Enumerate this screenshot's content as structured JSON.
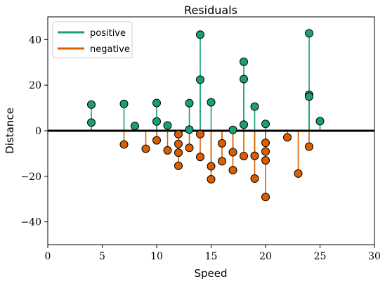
{
  "chart_data": {
    "type": "scatter",
    "title": "Residuals",
    "xlabel": "Speed",
    "ylabel": "Distance",
    "xlim": [
      0,
      30
    ],
    "ylim": [
      -50,
      50
    ],
    "x_ticks": [
      0,
      5,
      10,
      15,
      20,
      25,
      30
    ],
    "y_ticks": [
      -40,
      -20,
      0,
      20,
      40
    ],
    "x_tick_labels": [
      "0",
      "5",
      "10",
      "15",
      "20",
      "25",
      "30"
    ],
    "y_tick_labels": [
      "−40",
      "−20",
      "0",
      "20",
      "40"
    ],
    "grid": false,
    "legend_position": "top-left",
    "baseline": 0,
    "colors": {
      "positive": "#1b9e77",
      "negative": "#d95f02"
    },
    "series": [
      {
        "name": "positive",
        "points": [
          {
            "x": 4,
            "y": 11.5
          },
          {
            "x": 4,
            "y": 3.6
          },
          {
            "x": 7,
            "y": 11.8
          },
          {
            "x": 8,
            "y": 2.1
          },
          {
            "x": 10,
            "y": 12.2
          },
          {
            "x": 10,
            "y": 4.1
          },
          {
            "x": 11,
            "y": 2.3
          },
          {
            "x": 13,
            "y": 12.1
          },
          {
            "x": 13,
            "y": 0.5
          },
          {
            "x": 14,
            "y": 42.2
          },
          {
            "x": 14,
            "y": 22.4
          },
          {
            "x": 15,
            "y": 12.5
          },
          {
            "x": 17,
            "y": 0.4
          },
          {
            "x": 18,
            "y": 30.3
          },
          {
            "x": 18,
            "y": 22.7
          },
          {
            "x": 18,
            "y": 2.7
          },
          {
            "x": 19,
            "y": 10.6
          },
          {
            "x": 20,
            "y": 3.0
          },
          {
            "x": 24,
            "y": 42.8
          },
          {
            "x": 24,
            "y": 15.8
          },
          {
            "x": 24,
            "y": 15.0
          },
          {
            "x": 25,
            "y": 4.2
          }
        ]
      },
      {
        "name": "negative",
        "points": [
          {
            "x": 7,
            "y": -6.0
          },
          {
            "x": 9,
            "y": -7.9
          },
          {
            "x": 10,
            "y": -4.2
          },
          {
            "x": 11,
            "y": -8.6
          },
          {
            "x": 12,
            "y": -1.5
          },
          {
            "x": 12,
            "y": -5.8
          },
          {
            "x": 12,
            "y": -9.6
          },
          {
            "x": 12,
            "y": -15.4
          },
          {
            "x": 13,
            "y": -7.5
          },
          {
            "x": 14,
            "y": -1.5
          },
          {
            "x": 14,
            "y": -11.5
          },
          {
            "x": 15,
            "y": -15.6
          },
          {
            "x": 15,
            "y": -21.3
          },
          {
            "x": 16,
            "y": -5.5
          },
          {
            "x": 16,
            "y": -13.4
          },
          {
            "x": 17,
            "y": -9.4
          },
          {
            "x": 17,
            "y": -17.3
          },
          {
            "x": 18,
            "y": -11.1
          },
          {
            "x": 19,
            "y": -11.0
          },
          {
            "x": 19,
            "y": -21.0
          },
          {
            "x": 20,
            "y": -5.3
          },
          {
            "x": 20,
            "y": -9.1
          },
          {
            "x": 20,
            "y": -13.0
          },
          {
            "x": 20,
            "y": -29.1
          },
          {
            "x": 22,
            "y": -2.9
          },
          {
            "x": 23,
            "y": -18.8
          },
          {
            "x": 24,
            "y": -7.0
          }
        ]
      }
    ]
  }
}
